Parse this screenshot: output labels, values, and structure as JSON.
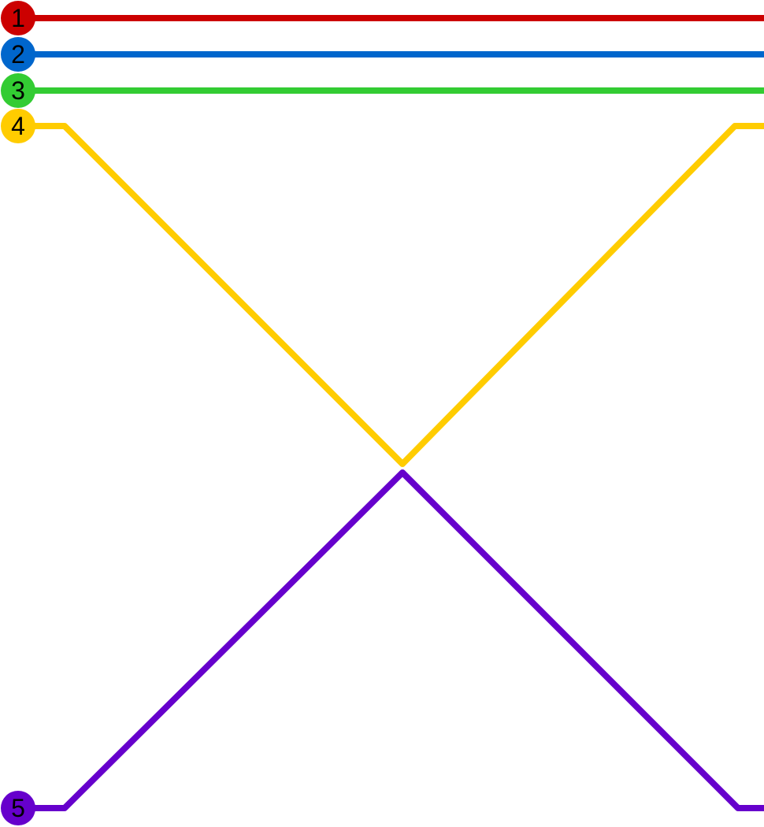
{
  "lines": [
    {
      "label": "1",
      "color": "#cc0000"
    },
    {
      "label": "2",
      "color": "#0066cc"
    },
    {
      "label": "3",
      "color": "#33cc33"
    },
    {
      "label": "4",
      "color": "#ffcc00"
    },
    {
      "label": "5",
      "color": "#6600cc"
    }
  ]
}
